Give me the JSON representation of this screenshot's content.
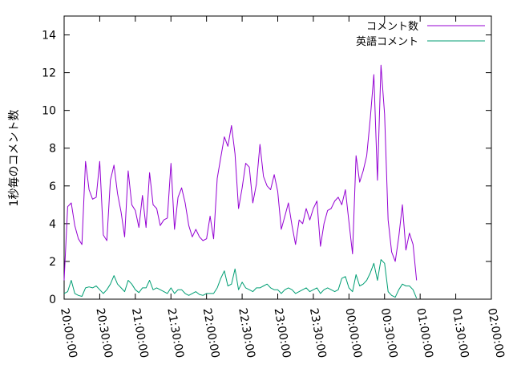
{
  "chart_data": {
    "type": "line",
    "title": "",
    "xlabel": "",
    "ylabel": "1秒毎のコメント数",
    "xlim": [
      "20:00:00",
      "02:00:00"
    ],
    "ylim": [
      0,
      15
    ],
    "x_start": "20:00:00",
    "x_step_minutes": 3,
    "x_ticks": [
      "20:00:00",
      "20:30:00",
      "21:00:00",
      "21:30:00",
      "22:00:00",
      "22:30:00",
      "23:00:00",
      "23:30:00",
      "00:00:00",
      "00:30:00",
      "01:00:00",
      "01:30:00",
      "02:00:00"
    ],
    "y_ticks": [
      0,
      2,
      4,
      6,
      8,
      10,
      12,
      14
    ],
    "grid": false,
    "legend_position": "top-right",
    "series": [
      {
        "name": "コメント数",
        "color": "#9400d3",
        "values": [
          1.0,
          4.9,
          5.1,
          3.9,
          3.2,
          2.9,
          7.3,
          5.8,
          5.3,
          5.4,
          7.3,
          3.4,
          3.1,
          6.3,
          7.1,
          5.6,
          4.6,
          3.3,
          6.8,
          5.0,
          4.7,
          3.8,
          5.5,
          3.8,
          6.7,
          5.0,
          4.8,
          3.9,
          4.2,
          4.3,
          7.2,
          3.7,
          5.4,
          5.9,
          5.1,
          3.9,
          3.3,
          3.7,
          3.3,
          3.1,
          3.2,
          4.4,
          3.2,
          6.4,
          7.5,
          8.6,
          8.1,
          9.2,
          7.7,
          4.8,
          5.9,
          7.2,
          7.0,
          5.1,
          6.1,
          8.2,
          6.5,
          6.0,
          5.8,
          6.6,
          5.7,
          3.7,
          4.4,
          5.1,
          3.9,
          2.9,
          4.2,
          4.0,
          4.8,
          4.2,
          4.8,
          5.2,
          2.8,
          4.0,
          4.7,
          4.8,
          5.2,
          5.4,
          5.0,
          5.8,
          4.1,
          2.4,
          7.6,
          6.2,
          6.8,
          7.6,
          9.6,
          11.9,
          6.3,
          12.4,
          9.8,
          4.2,
          2.5,
          2.0,
          3.3,
          5.0,
          2.6,
          3.5,
          2.9,
          1.0
        ]
      },
      {
        "name": "英語コメント",
        "color": "#009e73",
        "values": [
          0.3,
          0.4,
          1.0,
          0.3,
          0.2,
          0.15,
          0.6,
          0.65,
          0.6,
          0.7,
          0.5,
          0.3,
          0.5,
          0.8,
          1.25,
          0.8,
          0.6,
          0.4,
          1.0,
          0.8,
          0.5,
          0.35,
          0.6,
          0.6,
          1.0,
          0.5,
          0.6,
          0.5,
          0.4,
          0.3,
          0.6,
          0.3,
          0.5,
          0.5,
          0.3,
          0.2,
          0.3,
          0.4,
          0.25,
          0.2,
          0.3,
          0.3,
          0.3,
          0.6,
          1.1,
          1.5,
          0.7,
          0.8,
          1.6,
          0.5,
          0.9,
          0.6,
          0.5,
          0.4,
          0.6,
          0.6,
          0.7,
          0.8,
          0.6,
          0.5,
          0.5,
          0.3,
          0.5,
          0.6,
          0.5,
          0.3,
          0.4,
          0.5,
          0.6,
          0.4,
          0.5,
          0.6,
          0.3,
          0.5,
          0.6,
          0.5,
          0.4,
          0.5,
          1.1,
          1.2,
          0.6,
          0.4,
          1.3,
          0.7,
          0.8,
          1.0,
          1.4,
          1.9,
          1.0,
          2.1,
          1.9,
          0.4,
          0.2,
          0.1,
          0.5,
          0.8,
          0.7,
          0.7,
          0.5,
          0.05
        ]
      }
    ]
  }
}
